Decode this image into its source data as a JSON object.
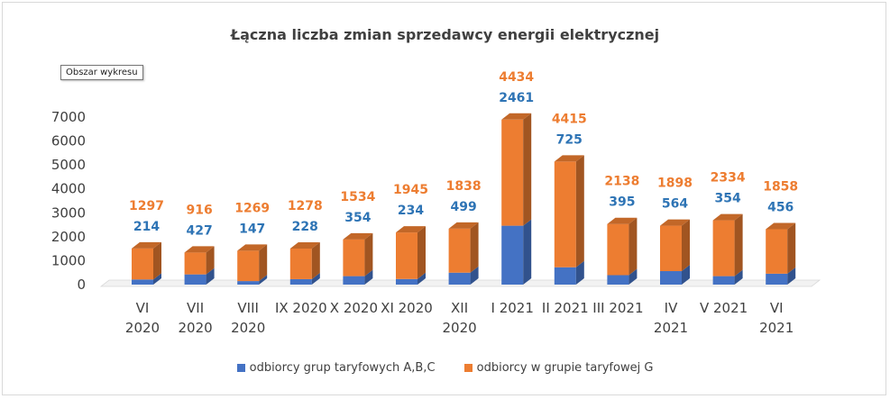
{
  "chart_data": {
    "type": "bar",
    "stacked": true,
    "title": "Łączna liczba zmian sprzedawcy energii elektrycznej",
    "categories": [
      [
        "VI",
        "2020"
      ],
      [
        "VII",
        "2020"
      ],
      [
        "VIII",
        "2020"
      ],
      [
        "IX 2020"
      ],
      [
        "X 2020"
      ],
      [
        "XI 2020"
      ],
      [
        "XII",
        "2020"
      ],
      [
        "I 2021"
      ],
      [
        "II 2021"
      ],
      [
        "III 2021"
      ],
      [
        "IV",
        "2021"
      ],
      [
        "V 2021"
      ],
      [
        "VI",
        "2021"
      ]
    ],
    "series": [
      {
        "name": "odbiorcy grup taryfowych A,B,C",
        "color": "#4472c4",
        "values": [
          214,
          427,
          147,
          228,
          354,
          234,
          499,
          2461,
          725,
          395,
          564,
          354,
          456
        ]
      },
      {
        "name": "odbiorcy w grupie taryfowej G",
        "color": "#ed7d31",
        "values": [
          1297,
          916,
          1269,
          1278,
          1534,
          1945,
          1838,
          4434,
          4415,
          2138,
          1898,
          2334,
          1858
        ]
      }
    ],
    "ylim": [
      0,
      7000
    ],
    "yticks": [
      0,
      1000,
      2000,
      3000,
      4000,
      5000,
      6000,
      7000
    ],
    "grid": false,
    "legend": "bottom"
  },
  "tooltip": "Obszar wykresu"
}
